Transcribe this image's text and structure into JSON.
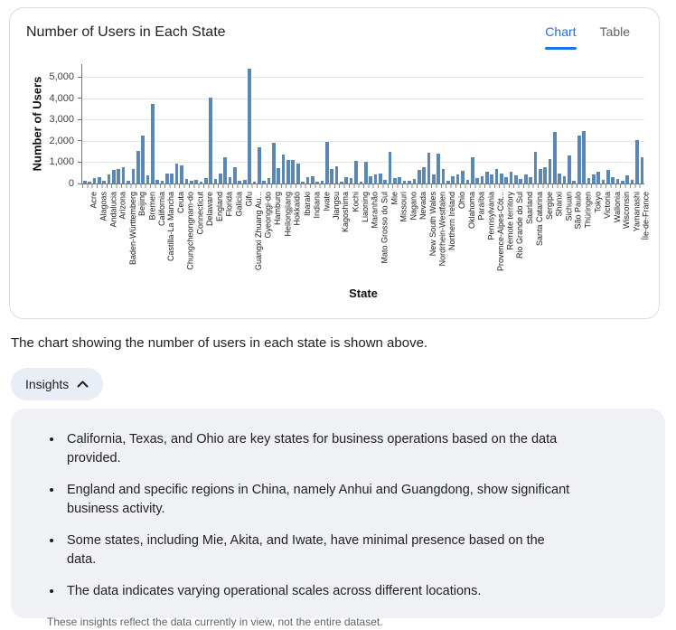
{
  "card": {
    "title": "Number of Users in Each State",
    "tabs": [
      {
        "label": "Chart",
        "active": true
      },
      {
        "label": "Table",
        "active": false
      }
    ]
  },
  "chart_data": {
    "type": "bar",
    "title": "Number of Users in Each State",
    "xlabel": "State",
    "ylabel": "Number of Users",
    "ylim": [
      0,
      5600
    ],
    "yticks": [
      0,
      1000,
      2000,
      3000,
      4000,
      5000
    ],
    "ytick_labels": [
      "0",
      "1,000",
      "2,000",
      "3,000",
      "4,000",
      "5,000"
    ],
    "grid": true,
    "bar_color": "#5b87b5",
    "note": "Dense bar chart (~116 bars); x-axis shows a label for every other bar",
    "bars": [
      {
        "label": "Acre",
        "value": 110
      },
      {
        "label": "",
        "value": 70
      },
      {
        "label": "Alagoas",
        "value": 250
      },
      {
        "label": "",
        "value": 290
      },
      {
        "label": "Andalucia",
        "value": 110
      },
      {
        "label": "",
        "value": 440
      },
      {
        "label": "Arizona",
        "value": 630
      },
      {
        "label": "",
        "value": 700
      },
      {
        "label": "Baden-Württemberg",
        "value": 760
      },
      {
        "label": "",
        "value": 150
      },
      {
        "label": "Beijing",
        "value": 660
      },
      {
        "label": "",
        "value": 1510
      },
      {
        "label": "Bremen",
        "value": 2250
      },
      {
        "label": "",
        "value": 370
      },
      {
        "label": "California",
        "value": 3750
      },
      {
        "label": "",
        "value": 180
      },
      {
        "label": "Castilla-La Mancha",
        "value": 120
      },
      {
        "label": "",
        "value": 450
      },
      {
        "label": "Ceuta",
        "value": 480
      },
      {
        "label": "",
        "value": 940
      },
      {
        "label": "Chungcheongnam-do",
        "value": 860
      },
      {
        "label": "",
        "value": 200
      },
      {
        "label": "Connecticut",
        "value": 120
      },
      {
        "label": "",
        "value": 190
      },
      {
        "label": "Delaware",
        "value": 90
      },
      {
        "label": "",
        "value": 260
      },
      {
        "label": "England",
        "value": 4050
      },
      {
        "label": "",
        "value": 230
      },
      {
        "label": "Florida",
        "value": 480
      },
      {
        "label": "",
        "value": 1250
      },
      {
        "label": "Galicia",
        "value": 300
      },
      {
        "label": "",
        "value": 780
      },
      {
        "label": "Gifu",
        "value": 120
      },
      {
        "label": "",
        "value": 190
      },
      {
        "label": "Guangxi Zhuang Au...",
        "value": 5400
      },
      {
        "label": "",
        "value": 90
      },
      {
        "label": "Gyeonggi-do",
        "value": 1720
      },
      {
        "label": "",
        "value": 120
      },
      {
        "label": "Hamburg",
        "value": 260
      },
      {
        "label": "",
        "value": 1900
      },
      {
        "label": "Heilongjiang",
        "value": 740
      },
      {
        "label": "",
        "value": 1370
      },
      {
        "label": "Hokkaido",
        "value": 1090
      },
      {
        "label": "",
        "value": 1120
      },
      {
        "label": "Ibaraki",
        "value": 950
      },
      {
        "label": "",
        "value": 100
      },
      {
        "label": "Indiana",
        "value": 320
      },
      {
        "label": "",
        "value": 330
      },
      {
        "label": "Iwate",
        "value": 100
      },
      {
        "label": "",
        "value": 150
      },
      {
        "label": "Jiangsu",
        "value": 1950
      },
      {
        "label": "",
        "value": 670
      },
      {
        "label": "Kagoshima",
        "value": 810
      },
      {
        "label": "",
        "value": 100
      },
      {
        "label": "Kochi",
        "value": 320
      },
      {
        "label": "",
        "value": 250
      },
      {
        "label": "Liaoning",
        "value": 1060
      },
      {
        "label": "",
        "value": 90
      },
      {
        "label": "Maranhão",
        "value": 1020
      },
      {
        "label": "",
        "value": 350
      },
      {
        "label": "Mato Grosso do Sul",
        "value": 420
      },
      {
        "label": "",
        "value": 490
      },
      {
        "label": "Mie",
        "value": 160
      },
      {
        "label": "",
        "value": 1500
      },
      {
        "label": "Missouri",
        "value": 260
      },
      {
        "label": "",
        "value": 280
      },
      {
        "label": "Nagano",
        "value": 110
      },
      {
        "label": "",
        "value": 150
      },
      {
        "label": "Nevada",
        "value": 220
      },
      {
        "label": "",
        "value": 630
      },
      {
        "label": "New South Wales",
        "value": 770
      },
      {
        "label": "",
        "value": 1440
      },
      {
        "label": "Nordrhein-Westfalen",
        "value": 420
      },
      {
        "label": "",
        "value": 1400
      },
      {
        "label": "Northern Ireland",
        "value": 700
      },
      {
        "label": "",
        "value": 140
      },
      {
        "label": "Ohio",
        "value": 350
      },
      {
        "label": "",
        "value": 420
      },
      {
        "label": "Oklahoma",
        "value": 590
      },
      {
        "label": "",
        "value": 170
      },
      {
        "label": "Paraíba",
        "value": 1220
      },
      {
        "label": "",
        "value": 250
      },
      {
        "label": "Pennsylvania",
        "value": 350
      },
      {
        "label": "",
        "value": 560
      },
      {
        "label": "Provence-Alpes-Côt...",
        "value": 420
      },
      {
        "label": "",
        "value": 700
      },
      {
        "label": "Remote territory",
        "value": 490
      },
      {
        "label": "",
        "value": 280
      },
      {
        "label": "Rio Grande do Sul",
        "value": 560
      },
      {
        "label": "",
        "value": 390
      },
      {
        "label": "Saarland",
        "value": 210
      },
      {
        "label": "",
        "value": 420
      },
      {
        "label": "Santa Catarina",
        "value": 280
      },
      {
        "label": "",
        "value": 1480
      },
      {
        "label": "Sergipe",
        "value": 700
      },
      {
        "label": "",
        "value": 780
      },
      {
        "label": "Shanxi",
        "value": 1150
      },
      {
        "label": "",
        "value": 2400
      },
      {
        "label": "Sichuan",
        "value": 450
      },
      {
        "label": "",
        "value": 330
      },
      {
        "label": "São Paulo",
        "value": 1300
      },
      {
        "label": "",
        "value": 140
      },
      {
        "label": "Thüringen",
        "value": 2250
      },
      {
        "label": "",
        "value": 2480
      },
      {
        "label": "Tokyo",
        "value": 250
      },
      {
        "label": "",
        "value": 420
      },
      {
        "label": "Victoria",
        "value": 550
      },
      {
        "label": "",
        "value": 180
      },
      {
        "label": "Wallonia",
        "value": 620
      },
      {
        "label": "",
        "value": 310
      },
      {
        "label": "Wisconsin",
        "value": 230
      },
      {
        "label": "",
        "value": 150
      },
      {
        "label": "Yamanashi",
        "value": 390
      },
      {
        "label": "",
        "value": 180
      },
      {
        "label": "Île-de-France",
        "value": 2050
      },
      {
        "label": "",
        "value": 1250
      }
    ]
  },
  "caption": "The chart showing the number of users in each state is shown above.",
  "insights": {
    "toggle_label": "Insights",
    "chevron_icon": "chevron-up",
    "bullets": [
      "California, Texas, and Ohio are key states for business operations based on the data provided.",
      "England and specific regions in China, namely Anhui and Guangdong, show significant business activity.",
      "Some states, including Mie, Akita, and Iwate, have minimal presence based on the data.",
      "The data indicates varying operational scales across different locations."
    ],
    "footnote": "These insights reflect the data currently in view, not the entire dataset."
  },
  "colors": {
    "accent": "#1a73e8",
    "bar": "#5b87b5",
    "tab_inactive": "#5f6368",
    "panel_bg": "#f0f1f4",
    "pill_bg": "#e8edf6",
    "card_border": "#dadce0"
  }
}
